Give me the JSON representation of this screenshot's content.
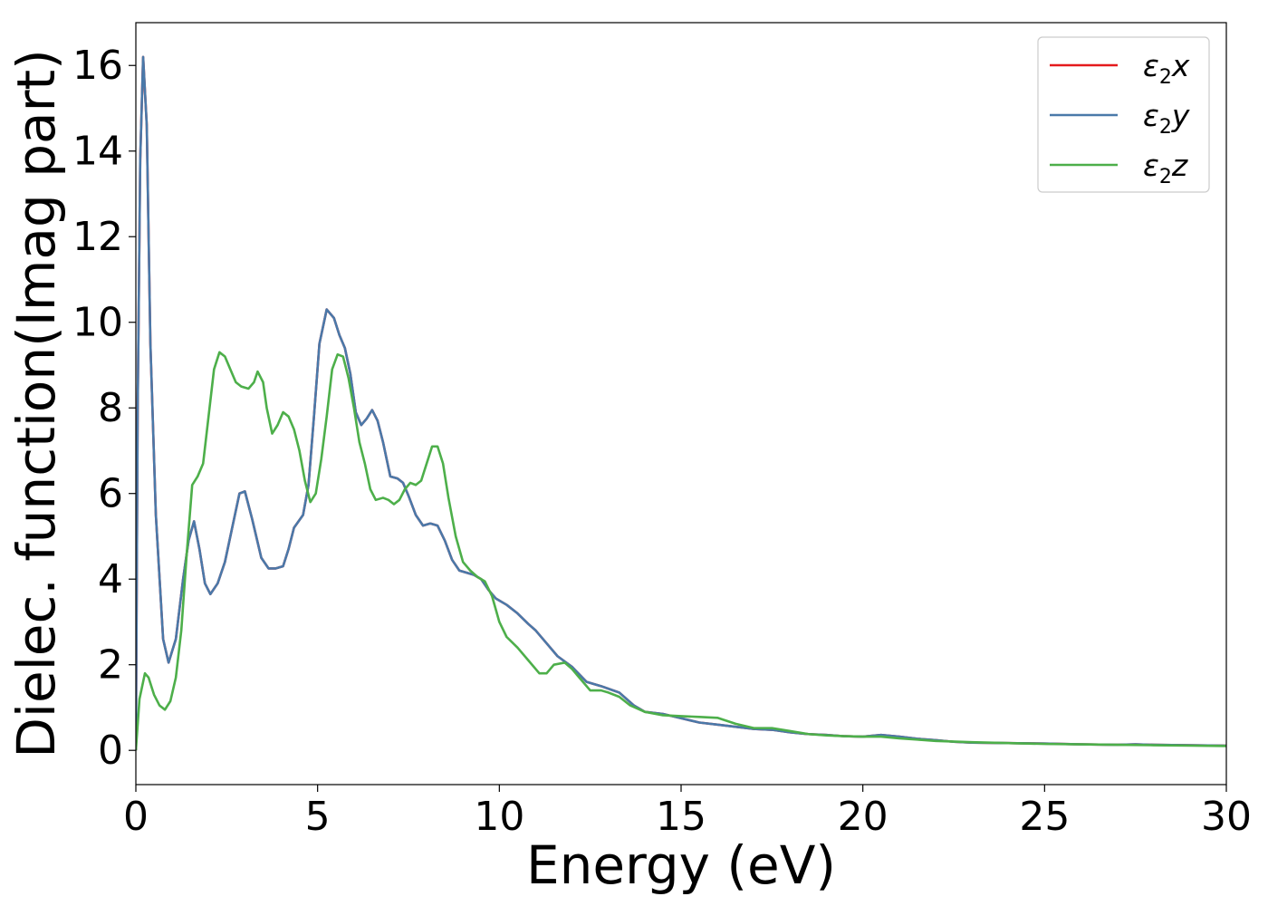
{
  "chart_data": {
    "type": "line",
    "xlabel": "Energy (eV)",
    "ylabel": "Dielec. function(Imag part)",
    "xlim": [
      0,
      30
    ],
    "ylim": [
      -0.8,
      17
    ],
    "xticks": [
      0,
      5,
      10,
      15,
      20,
      25,
      30
    ],
    "yticks": [
      0,
      2,
      4,
      6,
      8,
      10,
      12,
      14,
      16
    ],
    "grid": false,
    "legend_position": "top-right",
    "series": [
      {
        "name": "ε2x",
        "label_base": "ε",
        "label_sub": "2",
        "label_tail": "x",
        "color": "#e41a1c",
        "points": [
          [
            0,
            0
          ],
          [
            0.05,
            8.0
          ],
          [
            0.12,
            13.8
          ],
          [
            0.2,
            16.2
          ],
          [
            0.3,
            14.6
          ],
          [
            0.4,
            9.5
          ],
          [
            0.55,
            5.5
          ],
          [
            0.75,
            2.6
          ],
          [
            0.9,
            2.05
          ],
          [
            1.1,
            2.6
          ],
          [
            1.3,
            4.0
          ],
          [
            1.45,
            4.9
          ],
          [
            1.6,
            5.35
          ],
          [
            1.75,
            4.7
          ],
          [
            1.9,
            3.9
          ],
          [
            2.05,
            3.65
          ],
          [
            2.25,
            3.9
          ],
          [
            2.45,
            4.4
          ],
          [
            2.65,
            5.2
          ],
          [
            2.85,
            6.0
          ],
          [
            3.0,
            6.05
          ],
          [
            3.2,
            5.4
          ],
          [
            3.45,
            4.5
          ],
          [
            3.65,
            4.25
          ],
          [
            3.85,
            4.25
          ],
          [
            4.05,
            4.3
          ],
          [
            4.2,
            4.7
          ],
          [
            4.35,
            5.2
          ],
          [
            4.6,
            5.5
          ],
          [
            4.75,
            6.2
          ],
          [
            4.9,
            7.8
          ],
          [
            5.05,
            9.5
          ],
          [
            5.25,
            10.3
          ],
          [
            5.45,
            10.1
          ],
          [
            5.6,
            9.7
          ],
          [
            5.75,
            9.4
          ],
          [
            5.9,
            8.8
          ],
          [
            6.05,
            7.9
          ],
          [
            6.2,
            7.6
          ],
          [
            6.35,
            7.75
          ],
          [
            6.5,
            7.95
          ],
          [
            6.65,
            7.7
          ],
          [
            6.8,
            7.2
          ],
          [
            7.0,
            6.4
          ],
          [
            7.2,
            6.35
          ],
          [
            7.35,
            6.25
          ],
          [
            7.5,
            5.95
          ],
          [
            7.7,
            5.5
          ],
          [
            7.9,
            5.25
          ],
          [
            8.1,
            5.3
          ],
          [
            8.3,
            5.25
          ],
          [
            8.5,
            4.9
          ],
          [
            8.7,
            4.45
          ],
          [
            8.9,
            4.2
          ],
          [
            9.1,
            4.15
          ],
          [
            9.3,
            4.1
          ],
          [
            9.5,
            4.0
          ],
          [
            9.7,
            3.75
          ],
          [
            9.9,
            3.55
          ],
          [
            10.2,
            3.4
          ],
          [
            10.5,
            3.2
          ],
          [
            10.8,
            2.95
          ],
          [
            11.0,
            2.8
          ],
          [
            11.3,
            2.5
          ],
          [
            11.6,
            2.2
          ],
          [
            12.0,
            1.95
          ],
          [
            12.4,
            1.6
          ],
          [
            12.8,
            1.5
          ],
          [
            13.3,
            1.35
          ],
          [
            13.7,
            1.05
          ],
          [
            14.0,
            0.9
          ],
          [
            14.5,
            0.85
          ],
          [
            15.0,
            0.75
          ],
          [
            15.5,
            0.65
          ],
          [
            16.0,
            0.6
          ],
          [
            16.5,
            0.55
          ],
          [
            17.0,
            0.5
          ],
          [
            17.5,
            0.48
          ],
          [
            18.0,
            0.42
          ],
          [
            18.5,
            0.38
          ],
          [
            19.0,
            0.36
          ],
          [
            19.5,
            0.33
          ],
          [
            20.0,
            0.32
          ],
          [
            20.5,
            0.36
          ],
          [
            21.0,
            0.32
          ],
          [
            21.5,
            0.27
          ],
          [
            22.0,
            0.24
          ],
          [
            22.5,
            0.2
          ],
          [
            23.0,
            0.18
          ],
          [
            24.0,
            0.17
          ],
          [
            25.0,
            0.16
          ],
          [
            26.0,
            0.14
          ],
          [
            27.0,
            0.13
          ],
          [
            27.5,
            0.14
          ],
          [
            28.0,
            0.13
          ],
          [
            29.0,
            0.12
          ],
          [
            30.0,
            0.11
          ]
        ]
      },
      {
        "name": "ε2y",
        "label_base": "ε",
        "label_sub": "2",
        "label_tail": "y",
        "color": "#4a79a9",
        "points": [
          [
            0,
            0
          ],
          [
            0.05,
            8.0
          ],
          [
            0.12,
            13.8
          ],
          [
            0.2,
            16.2
          ],
          [
            0.3,
            14.6
          ],
          [
            0.4,
            9.5
          ],
          [
            0.55,
            5.5
          ],
          [
            0.75,
            2.6
          ],
          [
            0.9,
            2.05
          ],
          [
            1.1,
            2.6
          ],
          [
            1.3,
            4.0
          ],
          [
            1.45,
            4.9
          ],
          [
            1.6,
            5.35
          ],
          [
            1.75,
            4.7
          ],
          [
            1.9,
            3.9
          ],
          [
            2.05,
            3.65
          ],
          [
            2.25,
            3.9
          ],
          [
            2.45,
            4.4
          ],
          [
            2.65,
            5.2
          ],
          [
            2.85,
            6.0
          ],
          [
            3.0,
            6.05
          ],
          [
            3.2,
            5.4
          ],
          [
            3.45,
            4.5
          ],
          [
            3.65,
            4.25
          ],
          [
            3.85,
            4.25
          ],
          [
            4.05,
            4.3
          ],
          [
            4.2,
            4.7
          ],
          [
            4.35,
            5.2
          ],
          [
            4.6,
            5.5
          ],
          [
            4.75,
            6.2
          ],
          [
            4.9,
            7.8
          ],
          [
            5.05,
            9.5
          ],
          [
            5.25,
            10.3
          ],
          [
            5.45,
            10.1
          ],
          [
            5.6,
            9.7
          ],
          [
            5.75,
            9.4
          ],
          [
            5.9,
            8.8
          ],
          [
            6.05,
            7.9
          ],
          [
            6.2,
            7.6
          ],
          [
            6.35,
            7.75
          ],
          [
            6.5,
            7.95
          ],
          [
            6.65,
            7.7
          ],
          [
            6.8,
            7.2
          ],
          [
            7.0,
            6.4
          ],
          [
            7.2,
            6.35
          ],
          [
            7.35,
            6.25
          ],
          [
            7.5,
            5.95
          ],
          [
            7.7,
            5.5
          ],
          [
            7.9,
            5.25
          ],
          [
            8.1,
            5.3
          ],
          [
            8.3,
            5.25
          ],
          [
            8.5,
            4.9
          ],
          [
            8.7,
            4.45
          ],
          [
            8.9,
            4.2
          ],
          [
            9.1,
            4.15
          ],
          [
            9.3,
            4.1
          ],
          [
            9.5,
            4.0
          ],
          [
            9.7,
            3.75
          ],
          [
            9.9,
            3.55
          ],
          [
            10.2,
            3.4
          ],
          [
            10.5,
            3.2
          ],
          [
            10.8,
            2.95
          ],
          [
            11.0,
            2.8
          ],
          [
            11.3,
            2.5
          ],
          [
            11.6,
            2.2
          ],
          [
            12.0,
            1.95
          ],
          [
            12.4,
            1.6
          ],
          [
            12.8,
            1.5
          ],
          [
            13.3,
            1.35
          ],
          [
            13.7,
            1.05
          ],
          [
            14.0,
            0.9
          ],
          [
            14.5,
            0.85
          ],
          [
            15.0,
            0.75
          ],
          [
            15.5,
            0.65
          ],
          [
            16.0,
            0.6
          ],
          [
            16.5,
            0.55
          ],
          [
            17.0,
            0.5
          ],
          [
            17.5,
            0.48
          ],
          [
            18.0,
            0.42
          ],
          [
            18.5,
            0.38
          ],
          [
            19.0,
            0.36
          ],
          [
            19.5,
            0.33
          ],
          [
            20.0,
            0.32
          ],
          [
            20.5,
            0.36
          ],
          [
            21.0,
            0.32
          ],
          [
            21.5,
            0.27
          ],
          [
            22.0,
            0.24
          ],
          [
            22.5,
            0.2
          ],
          [
            23.0,
            0.18
          ],
          [
            24.0,
            0.17
          ],
          [
            25.0,
            0.16
          ],
          [
            26.0,
            0.14
          ],
          [
            27.0,
            0.13
          ],
          [
            27.5,
            0.14
          ],
          [
            28.0,
            0.13
          ],
          [
            29.0,
            0.12
          ],
          [
            30.0,
            0.11
          ]
        ]
      },
      {
        "name": "ε2z",
        "label_base": "ε",
        "label_sub": "2",
        "label_tail": "z",
        "color": "#4daf4a",
        "points": [
          [
            0,
            0
          ],
          [
            0.1,
            1.2
          ],
          [
            0.25,
            1.8
          ],
          [
            0.35,
            1.7
          ],
          [
            0.5,
            1.3
          ],
          [
            0.65,
            1.05
          ],
          [
            0.8,
            0.95
          ],
          [
            0.95,
            1.15
          ],
          [
            1.1,
            1.7
          ],
          [
            1.25,
            2.8
          ],
          [
            1.4,
            4.6
          ],
          [
            1.55,
            6.2
          ],
          [
            1.7,
            6.4
          ],
          [
            1.85,
            6.7
          ],
          [
            2.0,
            7.8
          ],
          [
            2.15,
            8.9
          ],
          [
            2.3,
            9.3
          ],
          [
            2.45,
            9.2
          ],
          [
            2.6,
            8.9
          ],
          [
            2.75,
            8.6
          ],
          [
            2.9,
            8.5
          ],
          [
            3.1,
            8.45
          ],
          [
            3.25,
            8.6
          ],
          [
            3.35,
            8.85
          ],
          [
            3.5,
            8.6
          ],
          [
            3.6,
            8.0
          ],
          [
            3.75,
            7.4
          ],
          [
            3.9,
            7.6
          ],
          [
            4.05,
            7.9
          ],
          [
            4.2,
            7.8
          ],
          [
            4.35,
            7.5
          ],
          [
            4.5,
            7.0
          ],
          [
            4.65,
            6.3
          ],
          [
            4.8,
            5.8
          ],
          [
            4.95,
            6.0
          ],
          [
            5.1,
            6.8
          ],
          [
            5.25,
            7.8
          ],
          [
            5.4,
            8.9
          ],
          [
            5.55,
            9.25
          ],
          [
            5.7,
            9.2
          ],
          [
            5.85,
            8.7
          ],
          [
            6.0,
            8.0
          ],
          [
            6.15,
            7.2
          ],
          [
            6.3,
            6.7
          ],
          [
            6.45,
            6.1
          ],
          [
            6.6,
            5.85
          ],
          [
            6.8,
            5.9
          ],
          [
            6.95,
            5.85
          ],
          [
            7.1,
            5.75
          ],
          [
            7.25,
            5.85
          ],
          [
            7.4,
            6.1
          ],
          [
            7.55,
            6.25
          ],
          [
            7.7,
            6.2
          ],
          [
            7.85,
            6.3
          ],
          [
            8.0,
            6.7
          ],
          [
            8.15,
            7.1
          ],
          [
            8.3,
            7.1
          ],
          [
            8.45,
            6.7
          ],
          [
            8.6,
            5.9
          ],
          [
            8.8,
            5.0
          ],
          [
            9.0,
            4.4
          ],
          [
            9.2,
            4.2
          ],
          [
            9.4,
            4.05
          ],
          [
            9.6,
            3.95
          ],
          [
            9.8,
            3.6
          ],
          [
            10.0,
            3.0
          ],
          [
            10.2,
            2.65
          ],
          [
            10.5,
            2.4
          ],
          [
            10.8,
            2.1
          ],
          [
            11.1,
            1.8
          ],
          [
            11.3,
            1.8
          ],
          [
            11.5,
            2.0
          ],
          [
            11.8,
            2.05
          ],
          [
            12.0,
            1.9
          ],
          [
            12.3,
            1.6
          ],
          [
            12.5,
            1.4
          ],
          [
            12.8,
            1.4
          ],
          [
            13.0,
            1.35
          ],
          [
            13.3,
            1.25
          ],
          [
            13.6,
            1.05
          ],
          [
            14.0,
            0.9
          ],
          [
            14.5,
            0.82
          ],
          [
            15.0,
            0.8
          ],
          [
            15.5,
            0.78
          ],
          [
            16.0,
            0.76
          ],
          [
            16.5,
            0.62
          ],
          [
            17.0,
            0.52
          ],
          [
            17.5,
            0.52
          ],
          [
            18.0,
            0.45
          ],
          [
            18.5,
            0.38
          ],
          [
            19.0,
            0.35
          ],
          [
            19.5,
            0.33
          ],
          [
            20.0,
            0.32
          ],
          [
            20.5,
            0.32
          ],
          [
            21.0,
            0.28
          ],
          [
            21.5,
            0.25
          ],
          [
            22.0,
            0.22
          ],
          [
            23.0,
            0.19
          ],
          [
            24.0,
            0.17
          ],
          [
            25.0,
            0.15
          ],
          [
            26.0,
            0.14
          ],
          [
            27.0,
            0.13
          ],
          [
            28.0,
            0.12
          ],
          [
            29.0,
            0.11
          ],
          [
            30.0,
            0.1
          ]
        ]
      }
    ]
  }
}
